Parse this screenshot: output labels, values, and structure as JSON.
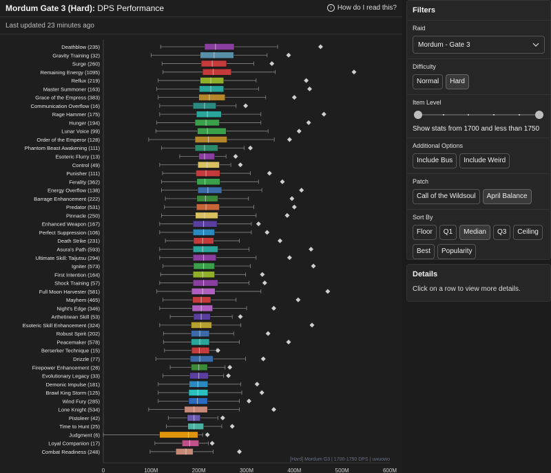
{
  "header": {
    "title_bold": "Mordum Gate 3 (Hard):",
    "title_rest": " DPS Performance",
    "help": "How do I read this?"
  },
  "last_updated": "Last updated 23 minutes ago",
  "filters": {
    "title": "Filters",
    "raid": {
      "label": "Raid",
      "value": "Mordum - Gate 3"
    },
    "difficulty": {
      "label": "Difficulty",
      "options": [
        "Normal",
        "Hard"
      ],
      "selected": "Hard"
    },
    "item_level": {
      "label": "Item Level",
      "text": "Show stats from 1700 and less than 1750",
      "range": [
        1700,
        1750
      ]
    },
    "additional": {
      "label": "Additional Options",
      "options": [
        "Include Bus",
        "Include Weird"
      ]
    },
    "patch": {
      "label": "Patch",
      "options": [
        "Call of the Wildsoul",
        "April Balance"
      ],
      "selected": "April Balance"
    },
    "sort": {
      "label": "Sort By",
      "options": [
        "Floor",
        "Q1",
        "Median",
        "Q3",
        "Ceiling",
        "Best",
        "Popularity"
      ],
      "selected": "Median"
    }
  },
  "details": {
    "title": "Details",
    "text": "Click on a row to view more details."
  },
  "chart_data": {
    "type": "box",
    "xlim": [
      0,
      600
    ],
    "x_ticks": [
      "0",
      "100M",
      "200M",
      "300M",
      "400M",
      "500M",
      "600M"
    ],
    "watermark": "[Hard] Mordum G3 | 1700-1750 DPS | uwuowo",
    "rows": [
      {
        "label": "Deathblow (235)",
        "min": 120,
        "q1": 212,
        "med": 235,
        "q3": 274,
        "max": 365,
        "best": 455,
        "color": "#8a3fa0"
      },
      {
        "label": "Gravity Training (32)",
        "min": 100,
        "q1": 203,
        "med": 232,
        "q3": 273,
        "max": 343,
        "best": 388,
        "color": "#5a8fa8"
      },
      {
        "label": "Surge (260)",
        "min": 123,
        "q1": 205,
        "med": 228,
        "q3": 258,
        "max": 315,
        "best": 353,
        "color": "#c53a3a"
      },
      {
        "label": "Remaining Energy (1095)",
        "min": 125,
        "q1": 208,
        "med": 230,
        "q3": 268,
        "max": 360,
        "best": 525,
        "color": "#c53a3a"
      },
      {
        "label": "Reflux (219)",
        "min": 115,
        "q1": 203,
        "med": 225,
        "q3": 252,
        "max": 320,
        "best": 425,
        "color": "#8fb028"
      },
      {
        "label": "Master Summoner (163)",
        "min": 112,
        "q1": 201,
        "med": 225,
        "q3": 252,
        "max": 325,
        "best": 432,
        "color": "#2aa59b"
      },
      {
        "label": "Grace of the Empress (383)",
        "min": 115,
        "q1": 200,
        "med": 222,
        "q3": 255,
        "max": 340,
        "best": 400,
        "color": "#b5862a"
      },
      {
        "label": "Communication Overflow (16)",
        "min": 118,
        "q1": 188,
        "med": 212,
        "q3": 236,
        "max": 278,
        "best": 298,
        "color": "#2a8a82"
      },
      {
        "label": "Rage Hammer (175)",
        "min": 118,
        "q1": 195,
        "med": 218,
        "q3": 247,
        "max": 330,
        "best": 462,
        "color": "#2aa59b"
      },
      {
        "label": "Hunger (194)",
        "min": 112,
        "q1": 192,
        "med": 215,
        "q3": 243,
        "max": 330,
        "best": 430,
        "color": "#3aa04a"
      },
      {
        "label": "Lunar Voice (99)",
        "min": 110,
        "q1": 197,
        "med": 218,
        "q3": 257,
        "max": 345,
        "best": 410,
        "color": "#3aa04a"
      },
      {
        "label": "Order of the Emperor (128)",
        "min": 95,
        "q1": 192,
        "med": 220,
        "q3": 259,
        "max": 358,
        "best": 390,
        "color": "#b5862a"
      },
      {
        "label": "Phantom Beast Awakening (111)",
        "min": 122,
        "q1": 192,
        "med": 212,
        "q3": 240,
        "max": 295,
        "best": 308,
        "color": "#2a8a6a"
      },
      {
        "label": "Esoteric Flurry (13)",
        "min": 160,
        "q1": 200,
        "med": 212,
        "q3": 233,
        "max": 257,
        "best": 277,
        "color": "#8a3fa0"
      },
      {
        "label": "Control (49)",
        "min": 118,
        "q1": 198,
        "med": 217,
        "q3": 243,
        "max": 267,
        "best": 287,
        "color": "#d9c060"
      },
      {
        "label": "Punisher (111)",
        "min": 124,
        "q1": 194,
        "med": 215,
        "q3": 244,
        "max": 308,
        "best": 348,
        "color": "#c53a3a"
      },
      {
        "label": "Ferality (362)",
        "min": 122,
        "q1": 196,
        "med": 213,
        "q3": 244,
        "max": 325,
        "best": 375,
        "color": "#3aa04a"
      },
      {
        "label": "Energy Overflow (138)",
        "min": 122,
        "q1": 198,
        "med": 219,
        "q3": 248,
        "max": 332,
        "best": 415,
        "color": "#3a6aa8"
      },
      {
        "label": "Barrage Enhancement (222)",
        "min": 130,
        "q1": 196,
        "med": 214,
        "q3": 240,
        "max": 304,
        "best": 395,
        "color": "#3a8a3a"
      },
      {
        "label": "Predator (531)",
        "min": 128,
        "q1": 195,
        "med": 215,
        "q3": 243,
        "max": 315,
        "best": 400,
        "color": "#c8663a"
      },
      {
        "label": "Pinnacle (250)",
        "min": 122,
        "q1": 193,
        "med": 212,
        "q3": 240,
        "max": 320,
        "best": 385,
        "color": "#d9c060"
      },
      {
        "label": "Enhanced Weapon (167)",
        "min": 118,
        "q1": 188,
        "med": 210,
        "q3": 238,
        "max": 310,
        "best": 325,
        "color": "#5a3fa0"
      },
      {
        "label": "Perfect Suppression (106)",
        "min": 118,
        "q1": 188,
        "med": 210,
        "q3": 233,
        "max": 310,
        "best": 343,
        "color": "#2a8ac0"
      },
      {
        "label": "Death Strike (231)",
        "min": 130,
        "q1": 189,
        "med": 208,
        "q3": 231,
        "max": 285,
        "best": 370,
        "color": "#c53a3a"
      },
      {
        "label": "Asura's Path (593)",
        "min": 118,
        "q1": 188,
        "med": 208,
        "q3": 240,
        "max": 305,
        "best": 435,
        "color": "#2aa59b"
      },
      {
        "label": "Ultimate Skill: Taijutsu (294)",
        "min": 118,
        "q1": 188,
        "med": 210,
        "q3": 236,
        "max": 320,
        "best": 390,
        "color": "#8a3fa0"
      },
      {
        "label": "Igniter (573)",
        "min": 125,
        "q1": 189,
        "med": 210,
        "q3": 233,
        "max": 308,
        "best": 440,
        "color": "#3aa04a"
      },
      {
        "label": "First Intention (164)",
        "min": 120,
        "q1": 188,
        "med": 208,
        "q3": 233,
        "max": 298,
        "best": 333,
        "color": "#8fb028"
      },
      {
        "label": "Shock Training (57)",
        "min": 118,
        "q1": 188,
        "med": 210,
        "q3": 240,
        "max": 305,
        "best": 338,
        "color": "#8a3fa0"
      },
      {
        "label": "Full Moon Harvester (581)",
        "min": 112,
        "q1": 185,
        "med": 208,
        "q3": 234,
        "max": 330,
        "best": 470,
        "color": "#b060c0"
      },
      {
        "label": "Mayhem (465)",
        "min": 125,
        "q1": 187,
        "med": 205,
        "q3": 225,
        "max": 278,
        "best": 408,
        "color": "#c53a3a"
      },
      {
        "label": "Night's Edge (346)",
        "min": 118,
        "q1": 186,
        "med": 205,
        "q3": 229,
        "max": 300,
        "best": 357,
        "color": "#b060c0"
      },
      {
        "label": "Arthetinean Skill (53)",
        "min": 140,
        "q1": 189,
        "med": 205,
        "q3": 224,
        "max": 270,
        "best": 287,
        "color": "#5a3fa0"
      },
      {
        "label": "Esoteric Skill Enhancement (324)",
        "min": 118,
        "q1": 184,
        "med": 204,
        "q3": 227,
        "max": 288,
        "best": 437,
        "color": "#b5a030"
      },
      {
        "label": "Robust Spirit (202)",
        "min": 126,
        "q1": 184,
        "med": 202,
        "q3": 222,
        "max": 273,
        "best": 345,
        "color": "#3a6aa8"
      },
      {
        "label": "Peacemaker (578)",
        "min": 126,
        "q1": 184,
        "med": 202,
        "q3": 222,
        "max": 285,
        "best": 388,
        "color": "#2aa59b"
      },
      {
        "label": "Berserker Technique (15)",
        "min": 128,
        "q1": 185,
        "med": 201,
        "q3": 222,
        "max": 237,
        "best": 240,
        "color": "#c53a3a"
      },
      {
        "label": "Drizzle (77)",
        "min": 110,
        "q1": 182,
        "med": 202,
        "q3": 230,
        "max": 298,
        "best": 335,
        "color": "#3a6aa8"
      },
      {
        "label": "Firepower Enhancement (28)",
        "min": 140,
        "q1": 184,
        "med": 200,
        "q3": 218,
        "max": 255,
        "best": 265,
        "color": "#3a8a3a"
      },
      {
        "label": "Evolutionary Legacy (33)",
        "min": 125,
        "q1": 181,
        "med": 200,
        "q3": 220,
        "max": 252,
        "best": 262,
        "color": "#5a3fa0"
      },
      {
        "label": "Demonic Impulse (181)",
        "min": 115,
        "q1": 180,
        "med": 198,
        "q3": 219,
        "max": 288,
        "best": 322,
        "color": "#2a8ac0"
      },
      {
        "label": "Brawl King Storm (125)",
        "min": 115,
        "q1": 179,
        "med": 198,
        "q3": 219,
        "max": 290,
        "best": 332,
        "color": "#2ac0c0"
      },
      {
        "label": "Wind Fury (285)",
        "min": 115,
        "q1": 179,
        "med": 197,
        "q3": 218,
        "max": 285,
        "best": 305,
        "color": "#2a6ac0"
      },
      {
        "label": "Lone Knight (534)",
        "min": 95,
        "q1": 170,
        "med": 190,
        "q3": 218,
        "max": 285,
        "best": 357,
        "color": "#c88a78"
      },
      {
        "label": "Pistoleer (42)",
        "min": 136,
        "q1": 176,
        "med": 190,
        "q3": 203,
        "max": 240,
        "best": 250,
        "color": "#6a5ab0"
      },
      {
        "label": "Time to Hunt (25)",
        "min": 132,
        "q1": 177,
        "med": 190,
        "q3": 210,
        "max": 248,
        "best": 270,
        "color": "#4ab0a0"
      },
      {
        "label": "Judgment (6)",
        "min": 0,
        "q1": 118,
        "med": 178,
        "q3": 198,
        "max": 208,
        "best": 218,
        "color": "#e0960a"
      },
      {
        "label": "Loyal Companion (17)",
        "min": 108,
        "q1": 165,
        "med": 181,
        "q3": 200,
        "max": 220,
        "best": 228,
        "color": "#c0508a"
      },
      {
        "label": "Combat Readiness (248)",
        "min": 98,
        "q1": 152,
        "med": 173,
        "q3": 188,
        "max": 230,
        "best": 285,
        "color": "#c88a78"
      }
    ]
  }
}
